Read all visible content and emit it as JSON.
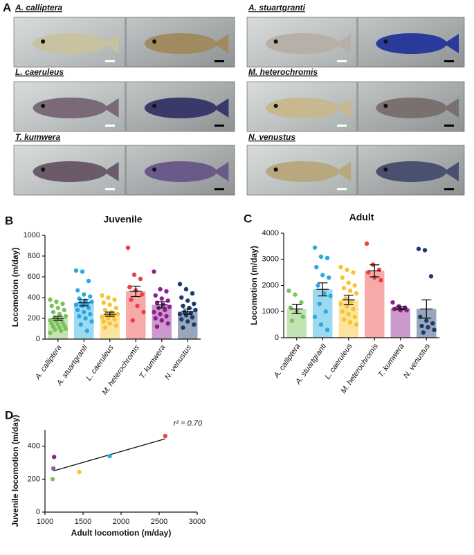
{
  "panel_a": {
    "label": "A",
    "species": [
      "A. calliptera",
      "A. stuartgranti",
      "L. caeruleus",
      "M. heterochromis",
      "T. kumwera",
      "N. venustus"
    ]
  },
  "chart_data": [
    {
      "type": "bar",
      "panel": "B",
      "title": "Juvenile",
      "ylabel": "Locomotion (m/day)",
      "categories": [
        "A. calliptera",
        "A. stuartgranti",
        "L. caeruleus",
        "M. heterochromis",
        "T. kumwera",
        "N. venustus"
      ],
      "colors": [
        "#7cc25a",
        "#29abe2",
        "#f8c42c",
        "#ef4040",
        "#8f1d8f",
        "#1c3a6a"
      ],
      "values": [
        200,
        350,
        240,
        460,
        330,
        265
      ],
      "errors": [
        20,
        30,
        20,
        50,
        30,
        25
      ],
      "points": [
        [
          380,
          360,
          340,
          320,
          300,
          280,
          260,
          240,
          220,
          200,
          190,
          180,
          170,
          160,
          150,
          140,
          130,
          120,
          110,
          100,
          90,
          80,
          60
        ],
        [
          660,
          650,
          560,
          470,
          430,
          410,
          390,
          370,
          360,
          350,
          340,
          330,
          320,
          300,
          280,
          260,
          240,
          220,
          200,
          170,
          140,
          80
        ],
        [
          420,
          400,
          380,
          350,
          330,
          300,
          280,
          260,
          240,
          230,
          220,
          210,
          200,
          190,
          170,
          150,
          130,
          110
        ],
        [
          880,
          620,
          580,
          500,
          470,
          430,
          380,
          320,
          260,
          180
        ],
        [
          650,
          480,
          460,
          420,
          390,
          370,
          350,
          330,
          310,
          300,
          280,
          260,
          240,
          220,
          200,
          180,
          150,
          120
        ],
        [
          530,
          480,
          440,
          400,
          370,
          340,
          320,
          300,
          280,
          260,
          250,
          240,
          230,
          210,
          190,
          170,
          140,
          110
        ]
      ],
      "ylim": [
        0,
        1000
      ],
      "yticks": [
        0,
        200,
        400,
        600,
        800,
        1000
      ]
    },
    {
      "type": "bar",
      "panel": "C",
      "title": "Adult",
      "ylabel": "Locomotion (m/day)",
      "categories": [
        "A. calliptera",
        "A. stuartgranti",
        "L. caeruleus",
        "M. heterochromis",
        "T. kumwera",
        "N. venustus"
      ],
      "colors": [
        "#7cc25a",
        "#29abe2",
        "#f8c42c",
        "#ef4040",
        "#8f1d8f",
        "#1c3a6a"
      ],
      "values": [
        1100,
        1850,
        1450,
        2560,
        1130,
        1100
      ],
      "errors": [
        180,
        250,
        180,
        230,
        60,
        350
      ],
      "points": [
        [
          1800,
          1650,
          1350,
          1150,
          1000,
          800,
          650
        ],
        [
          3450,
          3100,
          3050,
          2700,
          2400,
          2300,
          2000,
          1700,
          1600,
          1300,
          1000,
          800,
          500,
          300
        ],
        [
          2700,
          2600,
          2500,
          2300,
          2100,
          2000,
          1900,
          1800,
          1700,
          1500,
          1400,
          1300,
          1200,
          1100,
          1000,
          900,
          800,
          700,
          600,
          500
        ],
        [
          3600,
          2800,
          2600,
          2500,
          2300,
          2200
        ],
        [
          1350,
          1200,
          1150,
          1100,
          1050,
          1050
        ],
        [
          3400,
          3350,
          2350,
          800,
          650,
          550,
          450,
          400,
          300,
          200
        ]
      ],
      "ylim": [
        0,
        4000
      ],
      "yticks": [
        0,
        1000,
        2000,
        3000,
        4000
      ]
    },
    {
      "type": "scatter",
      "panel": "D",
      "xlabel": "Adult locomotion (m/day)",
      "ylabel": "Juvenile locomotion (m/day)",
      "x": [
        1100,
        1850,
        1450,
        2580,
        1120,
        1110
      ],
      "values": [
        200,
        340,
        243,
        462,
        335,
        265
      ],
      "colors": [
        "#7cc25a",
        "#29abe2",
        "#f8c42c",
        "#ef4040",
        "#8f1d8f",
        "#7a6a9a"
      ],
      "fit_line": {
        "x": [
          1110,
          2580
        ],
        "y": [
          250,
          445
        ]
      },
      "annotation": "r² = 0.70",
      "xlim": [
        1000,
        3000
      ],
      "xticks": [
        1000,
        1500,
        2000,
        2500,
        3000
      ],
      "ylim": [
        0,
        500
      ],
      "yticks": [
        0,
        200,
        400
      ]
    }
  ]
}
